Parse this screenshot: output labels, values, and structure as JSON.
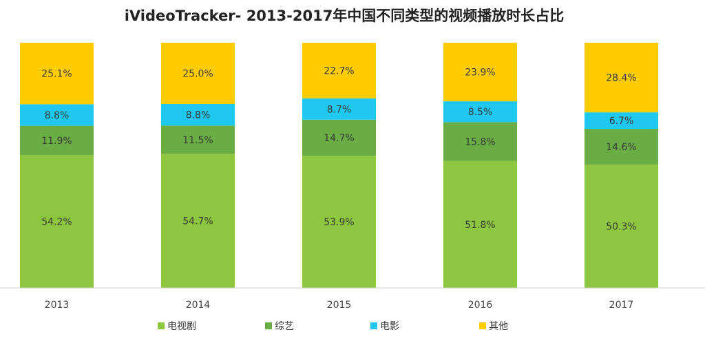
{
  "chart_data": {
    "type": "bar",
    "stacked": true,
    "title": "iVideoTracker- 2013-2017年中国不同类型的视频播放时长占比",
    "categories": [
      "2013",
      "2014",
      "2015",
      "2016",
      "2017"
    ],
    "series": [
      {
        "name": "电视剧",
        "color": "#8dc63f",
        "values": [
          54.2,
          54.7,
          53.9,
          51.8,
          50.3
        ],
        "labels": [
          "54.2%",
          "54.7%",
          "53.9%",
          "51.8%",
          "50.3%"
        ]
      },
      {
        "name": "综艺",
        "color": "#6aad45",
        "values": [
          11.9,
          11.5,
          14.7,
          15.8,
          14.6
        ],
        "labels": [
          "11.9%",
          "11.5%",
          "14.7%",
          "15.8%",
          "14.6%"
        ]
      },
      {
        "name": "电影",
        "color": "#1ec8ef",
        "values": [
          8.8,
          8.8,
          8.7,
          8.5,
          6.7
        ],
        "labels": [
          "8.8%",
          "8.8%",
          "8.7%",
          "8.5%",
          "6.7%"
        ]
      },
      {
        "name": "其他",
        "color": "#ffcc00",
        "values": [
          25.1,
          25.0,
          22.7,
          23.9,
          28.4
        ],
        "labels": [
          "25.1%",
          "25.0%",
          "22.7%",
          "23.9%",
          "28.4%"
        ]
      }
    ],
    "ylim": [
      0,
      100
    ],
    "unit": "%",
    "grid": false,
    "legend_position": "bottom"
  }
}
